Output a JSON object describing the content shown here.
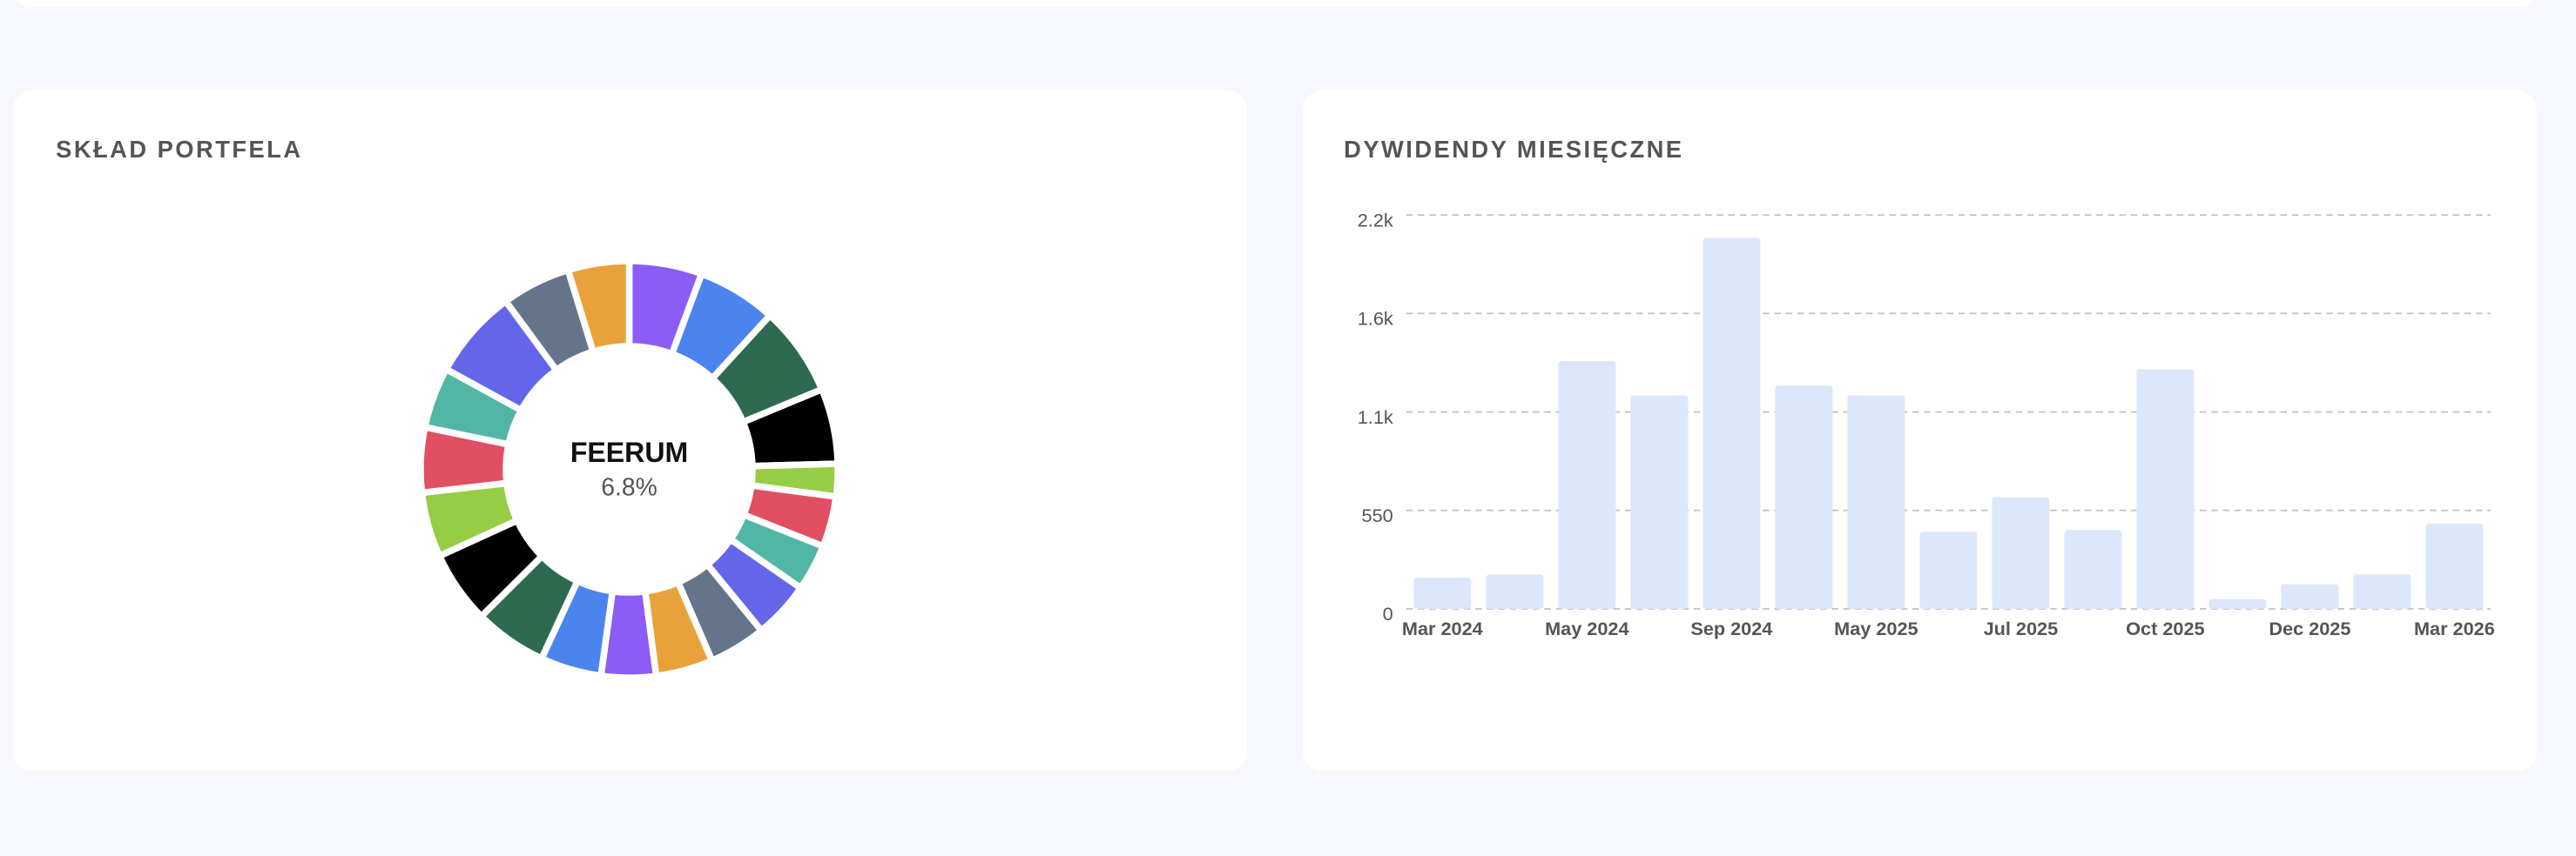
{
  "chart_data": [
    {
      "type": "donut",
      "title": "SKŁAD PORTFELA",
      "values": [
        5.6,
        6.1,
        6.9,
        5.8,
        2.5,
        3.9,
        3.6,
        4.4,
        4.4,
        4.4,
        4.2,
        4.7,
        5.6,
        5.6,
        5.0,
        5.0,
        4.7,
        6.9,
        5.3,
        4.7
      ],
      "colors": [
        "#8b5cf6",
        "#4c84ee",
        "#2d6a4f",
        "#000000",
        "#97cc45",
        "#e14f62",
        "#52b6a6",
        "#6466e9",
        "#64748b",
        "#e9a23b",
        "#8b5cf6",
        "#4c84ee",
        "#2d6a4f",
        "#000000",
        "#97cc45",
        "#e14f62",
        "#52b6a6",
        "#6466e9",
        "#64748b",
        "#e9a23b"
      ],
      "center_label": "FEERUM",
      "center_value": 6.8,
      "center_value_label": "6.8%"
    },
    {
      "type": "bar",
      "title": "DYWIDENDY MIESIĘCZNE",
      "categories": [
        "Mar 2024",
        null,
        "May 2024",
        null,
        "Sep 2024",
        null,
        "May 2025",
        null,
        "Jul 2025",
        null,
        "Oct 2025",
        null,
        "Dec 2025",
        null,
        "Mar 2026"
      ],
      "values": [
        174,
        192,
        1384,
        1192,
        2072,
        1247,
        1192,
        431,
        623,
        440,
        1338,
        55,
        138,
        193,
        477
      ],
      "color": "#dde7fb",
      "ylim": [
        0,
        2200
      ],
      "yticks": [
        0,
        550,
        {
          "value": 1100,
          "label": "1.1k"
        },
        {
          "value": 1650,
          "label": "1.6k"
        },
        {
          "value": 2200,
          "label": "2.2k"
        }
      ],
      "grid": true
    }
  ]
}
